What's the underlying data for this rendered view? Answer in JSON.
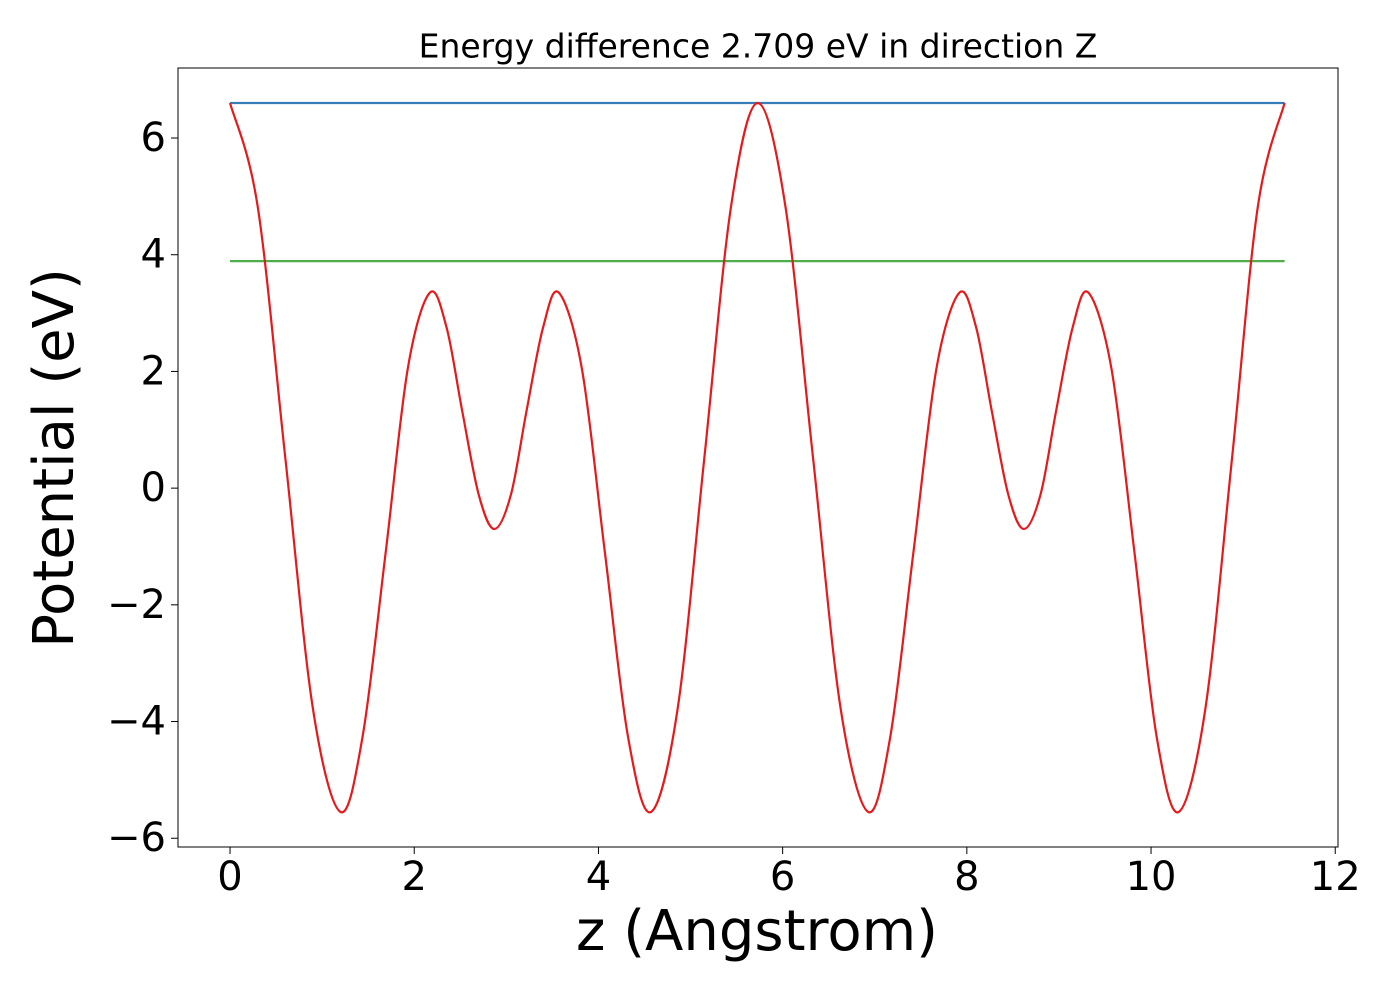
{
  "chart_data": {
    "type": "line",
    "title": "Energy difference 2.709 eV in direction Z",
    "x_label": "z (Angstrom)",
    "y_label": "Potential (eV)",
    "xlim": [
      -0.565,
      12.03
    ],
    "ylim": [
      -6.15,
      7.2
    ],
    "xticks": [
      0,
      2,
      4,
      6,
      8,
      10,
      12
    ],
    "yticks": [
      {
        "value": -6,
        "label": "−6"
      },
      {
        "value": -4,
        "label": "−4"
      },
      {
        "value": -2,
        "label": "−2"
      },
      0,
      2,
      4,
      6
    ],
    "series": [
      {
        "color": "#377eb8",
        "x": [
          0,
          11.45
        ],
        "values": [
          6.6,
          6.6
        ]
      },
      {
        "color": "#4daf4a",
        "x": [
          0,
          11.45
        ],
        "values": [
          3.89,
          3.89
        ]
      },
      {
        "color": "#e41a1c",
        "x": [
          0,
          0.3,
          0.6,
          0.9,
          1.2,
          1.44,
          1.69,
          1.93,
          2.17,
          2.35,
          2.52,
          2.7,
          2.87,
          3.05,
          3.22,
          3.4,
          3.57,
          3.82,
          4.07,
          4.32,
          4.57,
          4.86,
          5.15,
          5.44,
          5.73,
          6.03,
          6.33,
          6.63,
          6.93,
          7.17,
          7.42,
          7.67,
          7.92,
          8.1,
          8.27,
          8.45,
          8.62,
          8.8,
          8.97,
          9.15,
          9.32,
          9.57,
          9.82,
          10.06,
          10.3,
          10.59,
          10.88,
          11.16,
          11.45
        ],
        "values": [
          6.6,
          4.83,
          0.52,
          -3.78,
          -5.55,
          -4.25,
          -1.1,
          2.05,
          3.35,
          2.76,
          1.33,
          -0.11,
          -0.7,
          -0.11,
          1.33,
          2.76,
          3.35,
          2.05,
          -1.1,
          -4.25,
          -5.55,
          -3.78,
          0.52,
          4.83,
          6.6,
          4.83,
          0.52,
          -3.78,
          -5.55,
          -4.25,
          -1.1,
          2.05,
          3.35,
          2.76,
          1.33,
          -0.11,
          -0.7,
          -0.11,
          1.33,
          2.76,
          3.35,
          2.05,
          -1.1,
          -4.25,
          -5.55,
          -3.78,
          0.52,
          4.83,
          6.6
        ]
      }
    ]
  }
}
